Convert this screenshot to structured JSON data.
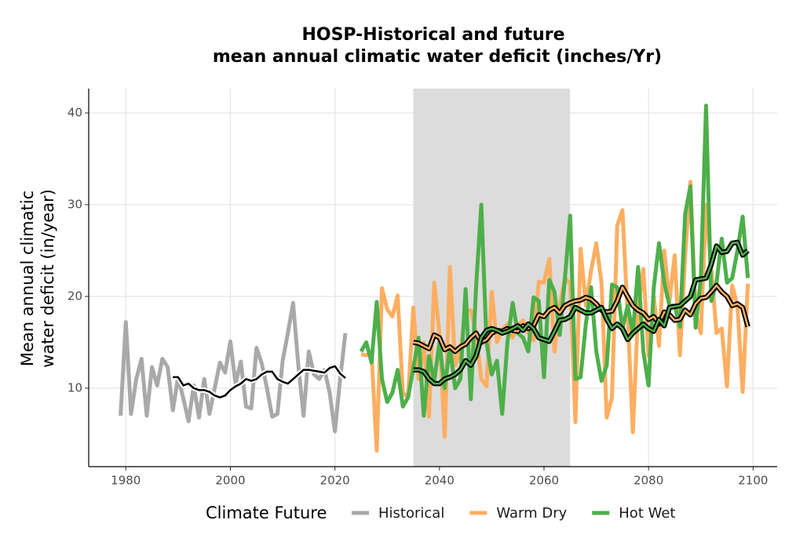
{
  "chart_data": {
    "type": "line",
    "title": [
      "HOSP-Historical and future",
      "mean annual climatic water deficit (inches/Yr)"
    ],
    "ylabel": [
      "Mean annual climatic",
      "water deficit (in/year)"
    ],
    "legend_title": "Climate Future",
    "legend": "bottom",
    "grid": true,
    "band": {
      "x": [
        2035,
        2065
      ],
      "color": "#dcdcdc"
    },
    "xlim": [
      1972.9,
      2104.6
    ],
    "xticks": [
      1980,
      2000,
      2020,
      2040,
      2060,
      2080,
      2100
    ],
    "ylim": [
      1.45,
      42.65
    ],
    "yticks": [
      10,
      20,
      30,
      40
    ],
    "series": [
      {
        "name": "Historical",
        "color": "#a9a9a9",
        "x": [
          1979,
          1980,
          1981,
          1982,
          1983,
          1984,
          1985,
          1986,
          1987,
          1988,
          1989,
          1990,
          1991,
          1992,
          1993,
          1994,
          1995,
          1996,
          1997,
          1998,
          1999,
          2000,
          2001,
          2002,
          2003,
          2004,
          2005,
          2006,
          2007,
          2008,
          2009,
          2010,
          2011,
          2012,
          2013,
          2014,
          2015,
          2016,
          2017,
          2018,
          2019,
          2020,
          2021,
          2022
        ],
        "values": [
          7,
          17.2,
          7.2,
          11,
          13.2,
          7,
          12.3,
          10.3,
          13.2,
          12.3,
          7.6,
          11.2,
          8.9,
          6.4,
          10.3,
          6.8,
          11,
          7.2,
          10,
          12.8,
          11.7,
          15.1,
          10.5,
          12.9,
          8,
          7.8,
          14.4,
          12.7,
          10,
          6.9,
          7.2,
          13,
          16,
          19.3,
          12.5,
          7,
          14,
          11.5,
          11,
          12,
          9.5,
          5.3,
          11,
          16
        ],
        "smooth": {
          "color": "#000000",
          "outline": "#ffffff",
          "x": [
            1989,
            1990,
            1991,
            1992,
            1993,
            1994,
            1995,
            1996,
            1997,
            1998,
            1999,
            2000,
            2001,
            2002,
            2003,
            2004,
            2005,
            2006,
            2007,
            2008,
            2009,
            2010,
            2011,
            2012,
            2013,
            2014,
            2015,
            2016,
            2017,
            2018,
            2019,
            2020,
            2021,
            2022
          ],
          "values": [
            11.2,
            11.2,
            10.3,
            10.5,
            10,
            9.8,
            9.8,
            9.6,
            9.2,
            9,
            9.2,
            9.8,
            10.2,
            10.5,
            11,
            10.8,
            11,
            11.5,
            11.8,
            11.8,
            11,
            10.7,
            10.5,
            11,
            11.5,
            12,
            12,
            11.9,
            11.8,
            11.7,
            12.2,
            12.4,
            11.6,
            11.1
          ]
        }
      },
      {
        "name": "Warm Dry",
        "color": "#fdae61",
        "x": [
          2025,
          2026,
          2027,
          2028,
          2029,
          2030,
          2031,
          2032,
          2033,
          2034,
          2035,
          2036,
          2037,
          2038,
          2039,
          2040,
          2041,
          2042,
          2043,
          2044,
          2045,
          2046,
          2047,
          2048,
          2049,
          2050,
          2051,
          2052,
          2053,
          2054,
          2055,
          2056,
          2057,
          2058,
          2059,
          2060,
          2061,
          2062,
          2063,
          2064,
          2065,
          2066,
          2067,
          2068,
          2069,
          2070,
          2071,
          2072,
          2073,
          2074,
          2075,
          2076,
          2077,
          2078,
          2079,
          2080,
          2081,
          2082,
          2083,
          2084,
          2085,
          2086,
          2087,
          2088,
          2089,
          2090,
          2091,
          2092,
          2093,
          2094,
          2095,
          2096,
          2097,
          2098,
          2099
        ],
        "values": [
          13.7,
          13.6,
          13.8,
          3.2,
          20.9,
          18.6,
          17.8,
          20.1,
          9.5,
          9.0,
          18.8,
          11,
          15,
          6.9,
          21.5,
          16,
          4.7,
          23.2,
          12.5,
          14,
          18.4,
          18.5,
          16,
          11,
          10.2,
          20.5,
          15,
          16.4,
          17,
          15.5,
          16.8,
          17.4,
          16,
          15.2,
          21.6,
          21.5,
          24.1,
          14,
          19,
          22,
          21.4,
          6.3,
          25.2,
          19,
          22.8,
          25.8,
          21.5,
          6.8,
          9,
          27.7,
          29.4,
          18,
          5.2,
          18.5,
          23,
          13.5,
          20,
          14.6,
          25,
          19.5,
          24.5,
          13.6,
          24.4,
          32.5,
          18.1,
          16,
          30,
          23,
          16,
          16.5,
          10.2,
          21.2,
          19,
          9.6,
          21.4
        ],
        "smooth": {
          "color": "#fdae61",
          "outline": "#000000",
          "x": [
            2035,
            2036,
            2037,
            2038,
            2039,
            2040,
            2041,
            2042,
            2043,
            2044,
            2045,
            2046,
            2047,
            2048,
            2049,
            2050,
            2051,
            2052,
            2053,
            2054,
            2055,
            2056,
            2057,
            2058,
            2059,
            2060,
            2061,
            2062,
            2063,
            2064,
            2065,
            2066,
            2067,
            2068,
            2069,
            2070,
            2071,
            2072,
            2073,
            2074,
            2075,
            2076,
            2077,
            2078,
            2079,
            2080,
            2081,
            2082,
            2083,
            2084,
            2085,
            2086,
            2087,
            2088,
            2089,
            2090,
            2091,
            2092,
            2093,
            2094,
            2095,
            2096,
            2097,
            2098,
            2099
          ],
          "values": [
            15.0,
            14.9,
            14.6,
            14.3,
            15.8,
            15.5,
            14.2,
            14.5,
            14.0,
            14.5,
            14.8,
            15.5,
            16.0,
            15.0,
            15.3,
            16.0,
            16.3,
            16.2,
            16.5,
            16.3,
            16.2,
            16.8,
            16.5,
            16.8,
            18.0,
            17.8,
            18.5,
            18.8,
            18.2,
            19.0,
            19.3,
            19.5,
            19.6,
            19.9,
            19.7,
            19.2,
            18.5,
            18.3,
            18.4,
            19.5,
            21.0,
            20.0,
            19.0,
            18.5,
            18.2,
            17.5,
            17.8,
            17.0,
            18.3,
            18.0,
            17.4,
            17.5,
            18.5,
            18.0,
            19.2,
            19.8,
            19.9,
            20.5,
            21.2,
            20.5,
            20.0,
            19.0,
            19.2,
            18.8,
            16.7
          ]
        }
      },
      {
        "name": "Hot Wet",
        "color": "#4daf4a",
        "x": [
          2025,
          2026,
          2027,
          2028,
          2029,
          2030,
          2031,
          2032,
          2033,
          2034,
          2035,
          2036,
          2037,
          2038,
          2039,
          2040,
          2041,
          2042,
          2043,
          2044,
          2045,
          2046,
          2047,
          2048,
          2049,
          2050,
          2051,
          2052,
          2053,
          2054,
          2055,
          2056,
          2057,
          2058,
          2059,
          2060,
          2061,
          2062,
          2063,
          2064,
          2065,
          2066,
          2067,
          2068,
          2069,
          2070,
          2071,
          2072,
          2073,
          2074,
          2075,
          2076,
          2077,
          2078,
          2079,
          2080,
          2081,
          2082,
          2083,
          2084,
          2085,
          2086,
          2087,
          2088,
          2089,
          2090,
          2091,
          2092,
          2093,
          2094,
          2095,
          2096,
          2097,
          2098,
          2099
        ],
        "values": [
          14,
          15,
          12.8,
          19.4,
          11,
          8.5,
          9.5,
          12,
          8,
          9,
          12.2,
          15.5,
          7,
          13.5,
          10.8,
          15,
          10,
          14.5,
          10,
          11,
          20.8,
          8.8,
          21,
          30,
          15,
          11.5,
          13,
          7.2,
          15,
          19.3,
          16,
          15.5,
          14,
          19.9,
          19.5,
          11.2,
          21.8,
          20.5,
          15.8,
          22,
          28.8,
          11,
          11.2,
          17,
          21,
          14,
          10.8,
          12.5,
          21.3,
          21,
          16.5,
          19,
          16,
          23.2,
          14,
          10.3,
          21,
          25.8,
          21.5,
          19,
          19,
          16.7,
          29,
          32,
          16.6,
          22,
          40.8,
          19.5,
          21.5,
          26.3,
          21.5,
          22,
          25,
          28.7,
          22
        ],
        "smooth": {
          "color": "#4daf4a",
          "outline": "#000000",
          "x": [
            2035,
            2036,
            2037,
            2038,
            2039,
            2040,
            2041,
            2042,
            2043,
            2044,
            2045,
            2046,
            2047,
            2048,
            2049,
            2050,
            2051,
            2052,
            2053,
            2054,
            2055,
            2056,
            2057,
            2058,
            2059,
            2060,
            2061,
            2062,
            2063,
            2064,
            2065,
            2066,
            2067,
            2068,
            2069,
            2070,
            2071,
            2072,
            2073,
            2074,
            2075,
            2076,
            2077,
            2078,
            2079,
            2080,
            2081,
            2082,
            2083,
            2084,
            2085,
            2086,
            2087,
            2088,
            2089,
            2090,
            2091,
            2092,
            2093,
            2094,
            2095,
            2096,
            2097,
            2098,
            2099
          ],
          "values": [
            12.0,
            12.0,
            11.8,
            11.0,
            10.5,
            10.5,
            11.0,
            11.2,
            11.5,
            12.0,
            13.0,
            12.5,
            13.5,
            15.5,
            16.3,
            16.5,
            16.3,
            16.0,
            16.2,
            16.5,
            16.8,
            16.3,
            17.0,
            16.5,
            15.5,
            15.3,
            15.1,
            16.2,
            17.4,
            17.5,
            17.8,
            18.8,
            18.5,
            18.2,
            18.2,
            18.5,
            18.8,
            17.5,
            16.5,
            17.0,
            16.5,
            15.3,
            16.0,
            16.5,
            17.0,
            16.5,
            16.2,
            17.5,
            16.8,
            18.8,
            18.9,
            19.0,
            19.5,
            20.0,
            21.8,
            21.9,
            22.0,
            23.5,
            25.5,
            24.8,
            24.9,
            25.8,
            25.9,
            24.5,
            25.0
          ]
        }
      }
    ]
  }
}
